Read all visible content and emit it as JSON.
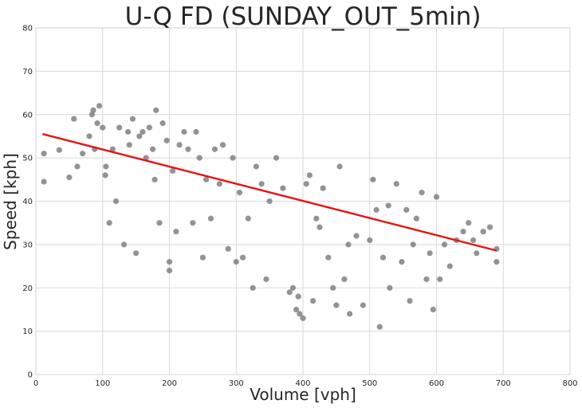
{
  "chart_data": {
    "type": "scatter",
    "title": "U-Q FD (SUNDAY_OUT_5min)",
    "xlabel": "Volume [vph]",
    "ylabel": "Speed [kph]",
    "xlim": [
      0,
      800
    ],
    "ylim": [
      0,
      80
    ],
    "xticks": [
      0,
      100,
      200,
      300,
      400,
      500,
      600,
      700,
      800
    ],
    "yticks": [
      0,
      10,
      20,
      30,
      40,
      50,
      60,
      70,
      80
    ],
    "grid": true,
    "point_color": "#808080",
    "fit_line_color": "#e8130f",
    "fit_line": {
      "x": [
        10,
        690
      ],
      "y": [
        55.5,
        28.6
      ]
    },
    "points_x": [
      12,
      12,
      35,
      50,
      57,
      62,
      70,
      80,
      84,
      86,
      88,
      92,
      95,
      100,
      104,
      105,
      110,
      115,
      120,
      125,
      132,
      138,
      140,
      145,
      150,
      155,
      160,
      165,
      170,
      175,
      178,
      180,
      185,
      190,
      196,
      200,
      200,
      205,
      210,
      215,
      222,
      228,
      235,
      240,
      245,
      250,
      255,
      262,
      268,
      275,
      280,
      288,
      295,
      300,
      305,
      310,
      318,
      325,
      330,
      338,
      345,
      350,
      360,
      370,
      380,
      385,
      390,
      393,
      395,
      400,
      405,
      410,
      415,
      420,
      425,
      430,
      438,
      445,
      450,
      455,
      462,
      468,
      470,
      480,
      490,
      500,
      505,
      510,
      515,
      520,
      528,
      530,
      540,
      548,
      555,
      560,
      565,
      570,
      578,
      585,
      590,
      595,
      600,
      605,
      612,
      620,
      630,
      640,
      648,
      655,
      660,
      670,
      680,
      690,
      690
    ],
    "points_y": [
      51,
      44.5,
      51.8,
      45.5,
      59,
      48,
      51,
      55,
      60,
      61,
      52,
      58,
      62,
      57,
      46,
      48,
      35,
      52,
      40,
      57,
      30,
      56,
      53,
      59,
      28,
      55,
      56,
      50,
      57,
      52,
      45,
      61,
      35,
      58,
      54,
      26,
      24,
      47,
      33,
      53,
      56,
      52,
      35,
      56,
      50,
      27,
      45,
      36,
      52,
      44,
      53,
      29,
      50,
      26,
      42,
      27,
      36,
      20,
      48,
      44,
      22,
      40,
      50,
      43,
      19,
      20,
      15,
      18,
      14,
      13,
      44,
      46,
      17,
      36,
      34,
      43,
      27,
      20,
      16,
      48,
      22,
      30,
      14,
      32,
      16,
      31,
      45,
      38,
      11,
      27,
      39,
      20,
      44,
      26,
      38,
      17,
      30,
      36,
      42,
      22,
      28,
      15,
      41,
      22,
      30,
      25,
      31,
      33,
      35,
      31,
      28,
      33,
      34,
      26,
      29
    ]
  }
}
